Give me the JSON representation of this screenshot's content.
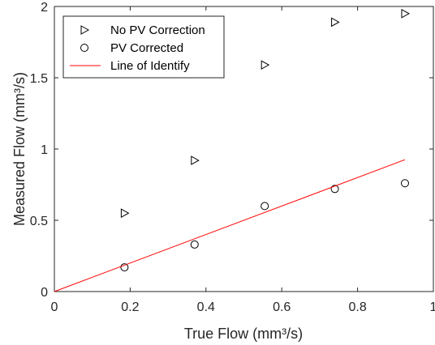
{
  "chart_data": {
    "type": "scatter",
    "xlabel": "True Flow (mm³/s)",
    "ylabel": "Measured Flow (mm³/s)",
    "xlim": [
      0,
      1
    ],
    "ylim": [
      0,
      2
    ],
    "xticks": [
      "0",
      "0.2",
      "0.4",
      "0.6",
      "0.8",
      "1"
    ],
    "yticks": [
      "0",
      "0.5",
      "1",
      "1.5",
      "2"
    ],
    "grid": false,
    "legend_position": "top-left",
    "series": [
      {
        "name": "No PV Correction",
        "marker": "triangle-right",
        "color": "#000000",
        "x": [
          0.185,
          0.37,
          0.555,
          0.74,
          0.925
        ],
        "y": [
          0.55,
          0.92,
          1.59,
          1.89,
          1.95
        ]
      },
      {
        "name": "PV Corrected",
        "marker": "circle",
        "color": "#000000",
        "x": [
          0.185,
          0.37,
          0.555,
          0.74,
          0.925
        ],
        "y": [
          0.17,
          0.33,
          0.6,
          0.72,
          0.76
        ]
      },
      {
        "name": "Line of Identify",
        "marker": "line",
        "color": "#ff0000",
        "x": [
          0,
          0.925
        ],
        "y": [
          0,
          0.925
        ]
      }
    ]
  }
}
